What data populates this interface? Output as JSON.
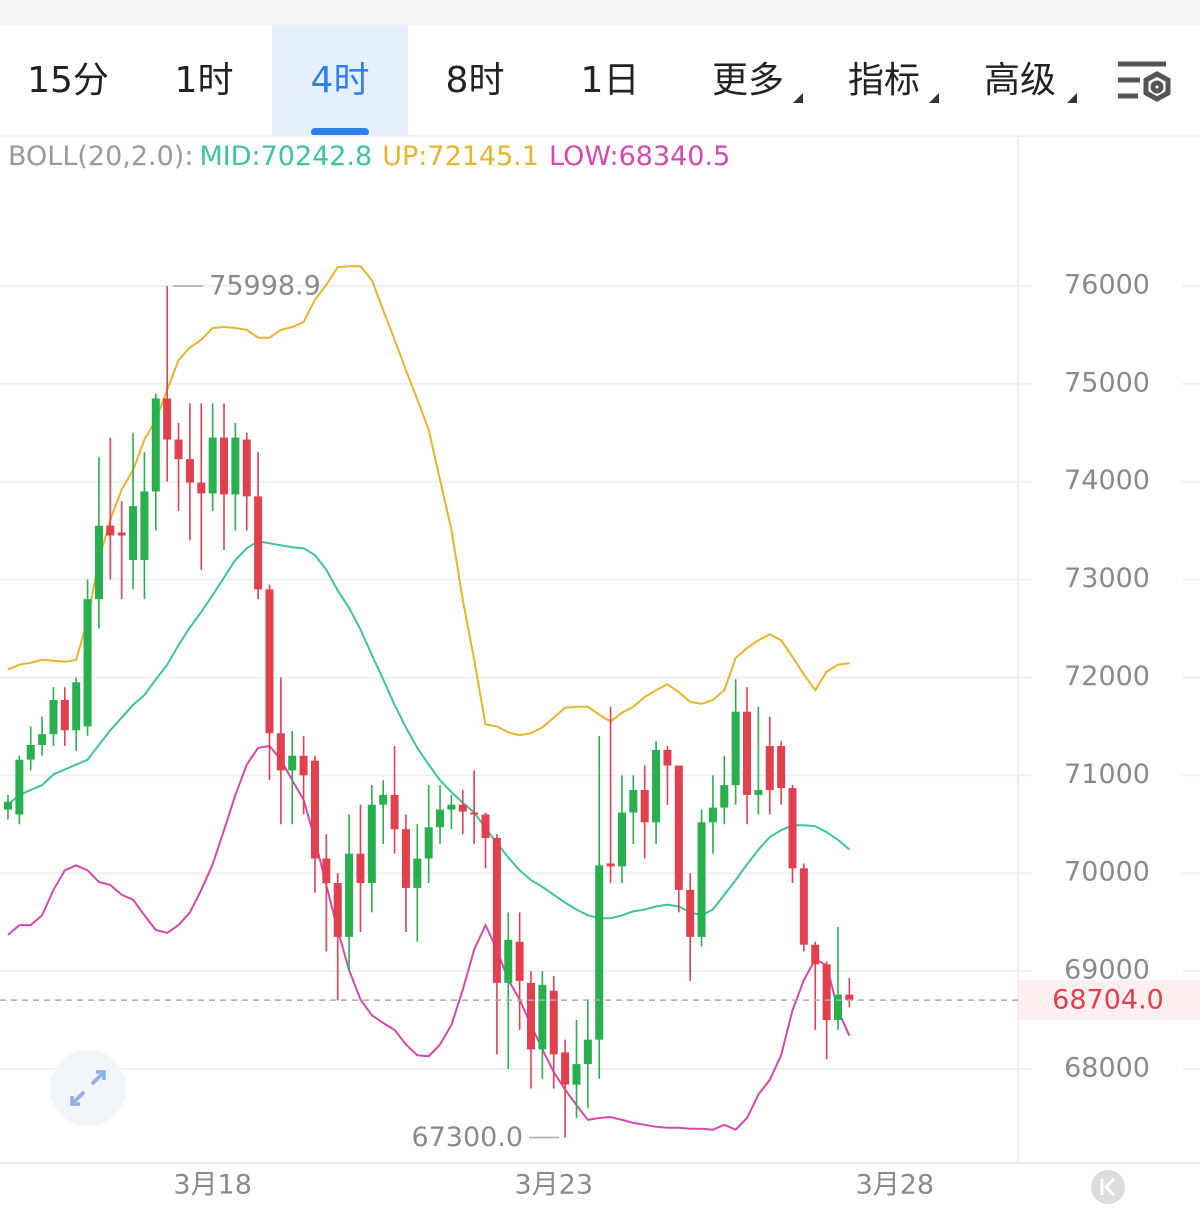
{
  "toolbar": {
    "tabs": [
      "15分",
      "1时",
      "4时",
      "8时",
      "1日",
      "更多",
      "指标",
      "高级"
    ]
  },
  "chart_data": {
    "type": "candlestick",
    "indicator": "BOLL(20,2.0):",
    "categories": [
      null,
      null,
      null,
      null,
      null,
      null,
      null,
      null,
      null,
      null,
      null,
      null,
      null,
      null,
      null,
      null,
      null,
      null,
      "3月18",
      null,
      null,
      null,
      null,
      null,
      null,
      null,
      null,
      null,
      null,
      null,
      null,
      null,
      null,
      null,
      null,
      null,
      null,
      null,
      null,
      null,
      null,
      null,
      null,
      null,
      null,
      null,
      null,
      null,
      "3月23",
      null,
      null,
      null,
      null,
      null,
      null,
      null,
      null,
      null,
      null,
      null,
      null,
      null,
      null,
      null,
      null,
      null,
      null,
      null,
      null,
      null,
      null,
      null,
      null,
      null,
      null,
      null,
      null,
      null,
      "3月28"
    ],
    "open": [
      70650,
      70600,
      71160,
      71310,
      71420,
      71770,
      71460,
      71500,
      72800,
      73550,
      73480,
      73200,
      73200,
      73900,
      74850,
      74430,
      74230,
      73990,
      73880,
      74450,
      73870,
      74430,
      73850,
      72900,
      71430,
      71050,
      71200,
      71150,
      70150,
      69900,
      69350,
      70200,
      69900,
      70700,
      70800,
      70450,
      69850,
      70150,
      70470,
      70650,
      70700,
      70620,
      70600,
      70360,
      68880,
      69300,
      68880,
      68200,
      68800,
      68170,
      67840,
      68050,
      68300,
      70100,
      70070,
      70620,
      70850,
      70520,
      71260,
      71100,
      69830,
      69350,
      70520,
      70670,
      70900,
      71650,
      70800,
      71300,
      71300,
      70870,
      70050,
      69270,
      69070,
      68500,
      68760,
      null,
      null,
      null,
      null
    ],
    "high": [
      70800,
      71200,
      71500,
      71600,
      71900,
      71900,
      72000,
      73000,
      74250,
      74450,
      73800,
      74500,
      74300,
      74900,
      75998.9,
      74600,
      74800,
      74800,
      74800,
      74800,
      74600,
      74500,
      74300,
      72950,
      72000,
      71450,
      71400,
      71200,
      70400,
      70000,
      70600,
      70700,
      70900,
      70950,
      71300,
      70600,
      70500,
      70900,
      70900,
      70800,
      70850,
      71050,
      70620,
      70400,
      69600,
      69600,
      69000,
      69000,
      68950,
      68300,
      68500,
      68700,
      71400,
      71700,
      71000,
      71000,
      71100,
      71350,
      71300,
      71100,
      70000,
      70650,
      71000,
      71200,
      71980,
      71900,
      71700,
      71600,
      71350,
      70900,
      70100,
      69300,
      69100,
      69450,
      68930,
      null,
      null,
      null,
      null
    ],
    "low": [
      70550,
      70500,
      71050,
      71200,
      71300,
      71300,
      71250,
      71400,
      72500,
      73000,
      72800,
      72900,
      72800,
      73500,
      74000,
      73700,
      73400,
      73100,
      73700,
      73300,
      73500,
      73500,
      72800,
      70950,
      70500,
      70500,
      70600,
      69800,
      69200,
      68700,
      69000,
      69400,
      69600,
      70300,
      70200,
      69400,
      69300,
      69900,
      70300,
      70450,
      70400,
      70300,
      70050,
      68150,
      68000,
      68400,
      67800,
      67900,
      67800,
      67300,
      67500,
      67600,
      67900,
      69900,
      69900,
      70300,
      70150,
      70300,
      70700,
      69600,
      68900,
      69250,
      70200,
      70500,
      70700,
      70500,
      70600,
      70600,
      70700,
      69900,
      69200,
      68400,
      68100,
      68400,
      68630,
      null,
      null,
      null,
      null
    ],
    "close": [
      70730,
      71160,
      71310,
      71420,
      71770,
      71460,
      71950,
      72800,
      73550,
      73450,
      73450,
      73750,
      73900,
      74850,
      74430,
      74230,
      73990,
      73880,
      74450,
      73870,
      74450,
      73850,
      72900,
      71430,
      71050,
      71200,
      71000,
      70150,
      69900,
      69350,
      70200,
      69900,
      70700,
      70800,
      70450,
      69850,
      70150,
      70470,
      70650,
      70700,
      70630,
      70600,
      70360,
      68880,
      69320,
      68900,
      68200,
      68860,
      68150,
      67840,
      68050,
      68300,
      70080,
      70070,
      70620,
      70850,
      70520,
      71260,
      71100,
      69830,
      69350,
      70520,
      70670,
      70900,
      71650,
      70800,
      70850,
      70850,
      70870,
      70050,
      69270,
      69070,
      68500,
      68760,
      68704,
      null,
      null,
      null,
      null
    ],
    "up_color": "#27b04d",
    "down_color": "#e2404f",
    "max_label": "75998.9",
    "min_label": "67300.0",
    "last_label": "68704.0",
    "series": [
      {
        "name": "MID",
        "legend_label": "MID:70242.8",
        "color": "#3cc4a2",
        "values": [
          70700,
          70800,
          70850,
          70900,
          71010,
          71060,
          71110,
          71160,
          71310,
          71460,
          71590,
          71720,
          71820,
          71980,
          72130,
          72330,
          72510,
          72670,
          72840,
          73020,
          73200,
          73320,
          73390,
          73370,
          73350,
          73330,
          73320,
          73250,
          73100,
          72890,
          72710,
          72490,
          72230,
          71980,
          71720,
          71490,
          71280,
          71110,
          70950,
          70830,
          70720,
          70620,
          70460,
          70310,
          70160,
          70030,
          69930,
          69860,
          69780,
          69700,
          69630,
          69570,
          69540,
          69540,
          69570,
          69610,
          69630,
          69660,
          69680,
          69660,
          69600,
          69570,
          69630,
          69780,
          69930,
          70090,
          70240,
          70370,
          70440,
          70490,
          70490,
          70480,
          70420,
          70340,
          70242.8,
          null,
          null,
          null,
          null
        ]
      },
      {
        "name": "UP",
        "legend_label": "UP:72145.1",
        "color": "#e8b52a",
        "values": [
          72080,
          72130,
          72150,
          72180,
          72170,
          72160,
          72180,
          72590,
          73200,
          73610,
          73920,
          74120,
          74430,
          74630,
          74940,
          75240,
          75370,
          75450,
          75570,
          75580,
          75570,
          75550,
          75470,
          75470,
          75550,
          75580,
          75630,
          75860,
          76010,
          76190,
          76200,
          76200,
          76060,
          75750,
          75450,
          75140,
          74840,
          74530,
          74020,
          73510,
          72790,
          72180,
          71520,
          71500,
          71440,
          71410,
          71430,
          71490,
          71590,
          71690,
          71700,
          71700,
          71620,
          71550,
          71640,
          71700,
          71800,
          71870,
          71930,
          71850,
          71750,
          71730,
          71770,
          71870,
          72200,
          72300,
          72380,
          72440,
          72380,
          72210,
          72030,
          71870,
          72060,
          72130,
          72145.1,
          null,
          null,
          null,
          null
        ]
      },
      {
        "name": "LOW",
        "legend_label": "LOW:68340.5",
        "color": "#d448b0",
        "values": [
          69370,
          69470,
          69470,
          69570,
          69830,
          70030,
          70080,
          70030,
          69910,
          69880,
          69780,
          69730,
          69570,
          69420,
          69390,
          69470,
          69600,
          69830,
          70090,
          70440,
          70800,
          71110,
          71280,
          71300,
          71160,
          70950,
          70750,
          70340,
          69880,
          69420,
          69010,
          68710,
          68550,
          68470,
          68400,
          68250,
          68140,
          68130,
          68250,
          68450,
          68810,
          69220,
          69470,
          69220,
          68910,
          68710,
          68450,
          68200,
          67970,
          67790,
          67630,
          67480,
          67500,
          67510,
          67480,
          67450,
          67430,
          67410,
          67400,
          67400,
          67390,
          67390,
          67380,
          67430,
          67380,
          67500,
          67740,
          67890,
          68140,
          68600,
          68910,
          69120,
          69060,
          68600,
          68340.5,
          null,
          null,
          null,
          null
        ]
      }
    ],
    "ylim": [
      67040,
      77490
    ],
    "yticks": [
      68000,
      69000,
      70000,
      71000,
      72000,
      73000,
      74000,
      75000,
      76000
    ],
    "grid": true
  }
}
